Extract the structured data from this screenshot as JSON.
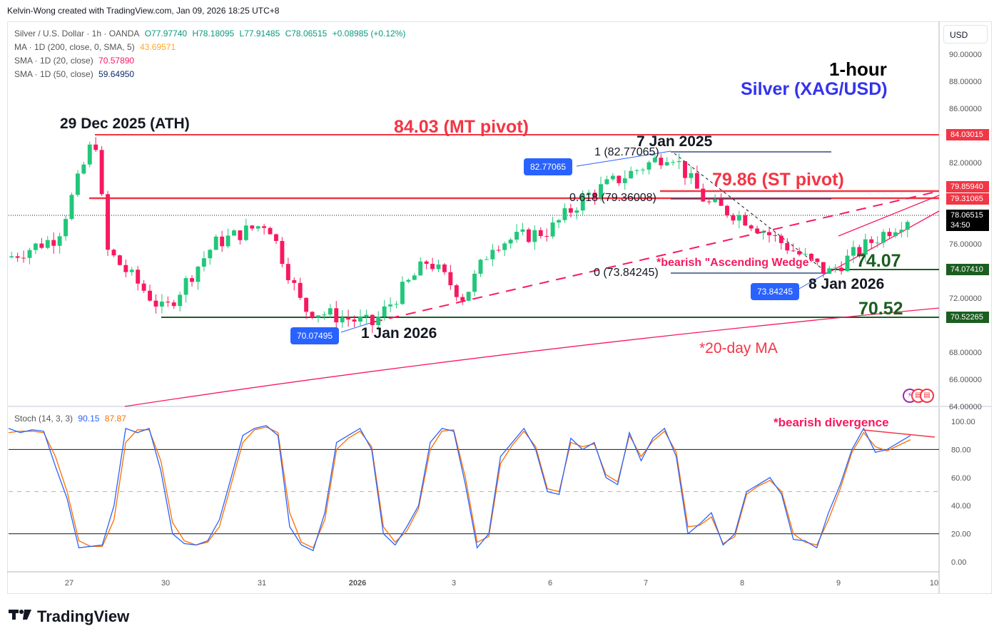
{
  "credit": "Kelvin-Wong created with TradingView.com, Jan 09, 2026 18:25 UTC+8",
  "legend": {
    "symbol": "Silver / U.S. Dollar · 1h · OANDA",
    "open": "O77.97740",
    "high": "H78.18095",
    "low": "L77.91485",
    "close": "C78.06515",
    "change": "+0.08985 (+0.12%)",
    "ma200_label": "MA · 1D (200, close, 0, SMA, 5)",
    "ma200_value": "43.69571",
    "sma20_label": "SMA · 1D (20, close)",
    "sma20_value": "70.57890",
    "sma50_label": "SMA · 1D (50, close)",
    "sma50_value": "59.64950"
  },
  "currency_button": "USD",
  "title": {
    "timeframe": "1-hour",
    "instrument": "Silver (XAG/USD)"
  },
  "annotations": {
    "ath": "29 Dec 2025 (ATH)",
    "mt_pivot": "84.03 (MT pivot)",
    "jan7": "7 Jan 2025",
    "fib_1": "1 (82.77065)",
    "fib_0618": "0.618 (79.36008)",
    "fib_0": "0 (73.84245)",
    "st_pivot": "79.86 (ST pivot)",
    "wedge": "*bearish \"Ascending Wedge\"",
    "support1": "74.07",
    "jan8": "8 Jan 2026",
    "support2": "70.52",
    "jan1": "1 Jan 2026",
    "ma20": "*20-day MA",
    "divergence": "*bearish divergence",
    "box_high": "82.77065",
    "box_low": "73.84245",
    "box_jan1": "70.07495"
  },
  "price_axis": {
    "ticks": [
      "90.00000",
      "88.00000",
      "86.00000",
      "82.00000",
      "76.00000",
      "72.00000",
      "68.00000",
      "66.00000",
      "64.00000"
    ],
    "tags": [
      {
        "value": "84.03015",
        "color": "#f23645"
      },
      {
        "value": "79.85940",
        "color": "#f23645"
      },
      {
        "value": "79.31065",
        "color": "#f23645"
      },
      {
        "value": "78.06515",
        "color": "#000000"
      },
      {
        "value": "74.07410",
        "color": "#1b5e20"
      },
      {
        "value": "70.52265",
        "color": "#1b5e20"
      }
    ],
    "countdown": "34:50"
  },
  "stoch": {
    "label": "Stoch (14, 3, 3)",
    "k_value": "90.15",
    "d_value": "87.87",
    "ticks": [
      "100.00",
      "80.00",
      "60.00",
      "40.00",
      "20.00",
      "0.00"
    ]
  },
  "time_axis": [
    "27",
    "30",
    "31",
    "2026",
    "3",
    "6",
    "7",
    "8",
    "9",
    "10"
  ],
  "brand": "TradingView",
  "colors": {
    "up": "#089981",
    "down": "#f23645",
    "candle_up": "#22c77a",
    "candle_down": "#f7195f",
    "pivot_red": "#f23645",
    "support_green": "#1b5e20",
    "k_line": "#2962ff",
    "d_line": "#ff6d00",
    "box_blue": "#2962ff",
    "title_blue": "#3333ee"
  },
  "chart_data": {
    "type": "candlestick",
    "title": "Silver (XAG/USD) 1-hour",
    "symbol": "Silver / U.S. Dollar · 1h · OANDA",
    "xlabel": "",
    "ylabel": "USD",
    "ylim": [
      64,
      91
    ],
    "x_ticks": [
      "27",
      "30",
      "31",
      "2026",
      "3",
      "6",
      "7",
      "8",
      "9",
      "10"
    ],
    "close_path": [
      {
        "x": "26 Dec",
        "close": 75.0
      },
      {
        "x": "27 Dec",
        "close": 76.5
      },
      {
        "x": "29 Dec (ATH)",
        "close": 84.03
      },
      {
        "x": "29 Dec late",
        "close": 75.5
      },
      {
        "x": "30 Dec",
        "close": 71.0
      },
      {
        "x": "30 Dec late",
        "close": 76.0
      },
      {
        "x": "31 Dec",
        "close": 77.6
      },
      {
        "x": "31 Dec late",
        "close": 71.2
      },
      {
        "x": "1 Jan",
        "close": 70.07
      },
      {
        "x": "2 Jan",
        "close": 74.8
      },
      {
        "x": "3 Jan",
        "close": 72.0
      },
      {
        "x": "5 Jan",
        "close": 76.0
      },
      {
        "x": "6 Jan",
        "close": 77.0
      },
      {
        "x": "6 Jan late",
        "close": 79.5
      },
      {
        "x": "7 Jan",
        "close": 82.77
      },
      {
        "x": "7 Jan late",
        "close": 79.0
      },
      {
        "x": "8 Jan",
        "close": 78.0
      },
      {
        "x": "8 Jan late",
        "close": 73.84
      },
      {
        "x": "9 Jan",
        "close": 76.5
      },
      {
        "x": "9 Jan now",
        "close": 78.065
      }
    ],
    "horizontal_levels": [
      {
        "name": "MT pivot",
        "value": 84.03
      },
      {
        "name": "ST pivot",
        "value": 79.86
      },
      {
        "name": "Fib 0.618",
        "value": 79.36
      },
      {
        "name": "Fib 1",
        "value": 82.77
      },
      {
        "name": "Fib 0",
        "value": 73.84
      },
      {
        "name": "Support 1",
        "value": 74.07
      },
      {
        "name": "Support 2",
        "value": 70.52
      }
    ],
    "sma20_range": [
      64.0,
      70.6
    ],
    "stochastic": {
      "params": "14, 3, 3",
      "k_last": 90.15,
      "d_last": 87.87,
      "overbought": 80,
      "oversold": 20,
      "ylim": [
        0,
        100
      ],
      "k": [
        95,
        92,
        94,
        93,
        68,
        45,
        10,
        11,
        12,
        40,
        95,
        92,
        95,
        65,
        20,
        13,
        12,
        15,
        30,
        60,
        90,
        95,
        97,
        90,
        25,
        12,
        8,
        35,
        85,
        90,
        95,
        80,
        20,
        12,
        25,
        40,
        85,
        95,
        93,
        55,
        10,
        20,
        75,
        85,
        95,
        80,
        50,
        48,
        88,
        80,
        85,
        60,
        55,
        92,
        72,
        88,
        95,
        75,
        20,
        27,
        35,
        12,
        20,
        50,
        55,
        60,
        48,
        16,
        15,
        10,
        35,
        55,
        80,
        95,
        78,
        80,
        85,
        90
      ],
      "d": [
        92,
        93,
        93,
        92,
        75,
        50,
        15,
        11,
        11,
        30,
        85,
        94,
        94,
        72,
        28,
        15,
        12,
        14,
        25,
        55,
        85,
        94,
        96,
        92,
        35,
        14,
        10,
        30,
        80,
        88,
        93,
        82,
        25,
        14,
        22,
        38,
        80,
        93,
        94,
        60,
        14,
        18,
        70,
        83,
        93,
        82,
        52,
        50,
        85,
        82,
        84,
        62,
        57,
        90,
        75,
        86,
        93,
        78,
        25,
        26,
        32,
        13,
        18,
        48,
        54,
        58,
        50,
        20,
        14,
        12,
        30,
        52,
        78,
        92,
        82,
        79,
        83,
        87
      ]
    }
  }
}
